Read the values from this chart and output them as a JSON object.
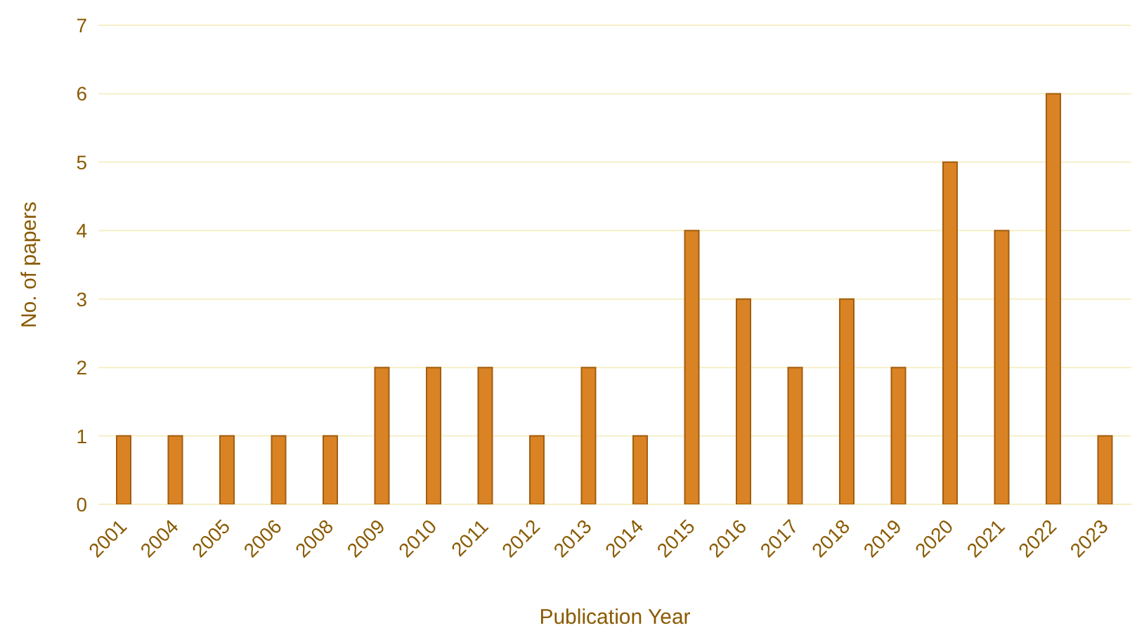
{
  "chart_data": {
    "type": "bar",
    "xlabel": "Publication Year",
    "ylabel": "No. of papers",
    "categories": [
      "2001",
      "2004",
      "2005",
      "2006",
      "2008",
      "2009",
      "2010",
      "2011",
      "2012",
      "2013",
      "2014",
      "2015",
      "2016",
      "2017",
      "2018",
      "2019",
      "2020",
      "2021",
      "2022",
      "2023"
    ],
    "values": [
      1,
      1,
      1,
      1,
      1,
      2,
      2,
      2,
      1,
      2,
      1,
      4,
      3,
      2,
      3,
      2,
      5,
      4,
      6,
      1
    ],
    "color": "#d98324",
    "ylim": [
      0,
      7
    ],
    "yticks": [
      0,
      1,
      2,
      3,
      4,
      5,
      6,
      7
    ],
    "grid": "y"
  }
}
